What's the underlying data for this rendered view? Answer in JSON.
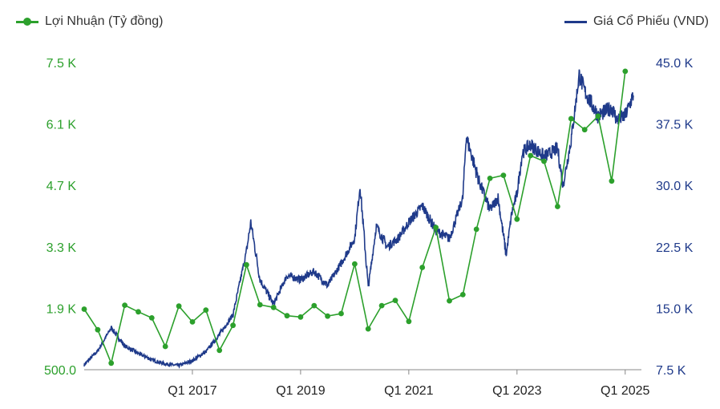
{
  "chart_data": {
    "type": "line",
    "legend_placement": "top",
    "colors": {
      "profit": "#2ca02c",
      "price": "#1f3a8a",
      "axis": "#444444"
    },
    "x_ticks": [
      "Q1 2017",
      "Q1 2019",
      "Q1 2021",
      "Q1 2023",
      "Q1 2025"
    ],
    "y_left": {
      "min": 500,
      "max": 7500,
      "ticks": [
        "500.0",
        "1.9 K",
        "3.3 K",
        "4.7 K",
        "6.1 K",
        "7.5 K"
      ]
    },
    "y_right": {
      "min": 7500,
      "max": 45000,
      "ticks": [
        "7.5 K",
        "15.0 K",
        "22.5 K",
        "30.0 K",
        "37.5 K",
        "45.0 K"
      ]
    },
    "series": [
      {
        "name": "Lợi Nhuận (Tỷ đồng)",
        "axis": "left",
        "x_quarter": [
          "2015-Q1",
          "2015-Q2",
          "2015-Q3",
          "2015-Q4",
          "2016-Q1",
          "2016-Q2",
          "2016-Q3",
          "2016-Q4",
          "2017-Q1",
          "2017-Q2",
          "2017-Q3",
          "2017-Q4",
          "2018-Q1",
          "2018-Q2",
          "2018-Q3",
          "2018-Q4",
          "2019-Q1",
          "2019-Q2",
          "2019-Q3",
          "2019-Q4",
          "2020-Q1",
          "2020-Q2",
          "2020-Q3",
          "2020-Q4",
          "2021-Q1",
          "2021-Q2",
          "2021-Q3",
          "2021-Q4",
          "2022-Q1",
          "2022-Q2",
          "2022-Q3",
          "2022-Q4",
          "2023-Q1",
          "2023-Q2",
          "2023-Q3",
          "2023-Q4",
          "2024-Q1",
          "2024-Q2",
          "2024-Q3",
          "2024-Q4",
          "2025-Q1"
        ],
        "values": [
          1880,
          1410,
          650,
          1970,
          1820,
          1680,
          1030,
          1950,
          1590,
          1860,
          940,
          1510,
          2890,
          1980,
          1920,
          1730,
          1700,
          1960,
          1720,
          1780,
          2910,
          1430,
          1960,
          2080,
          1600,
          2830,
          3740,
          2070,
          2210,
          3700,
          4860,
          4930,
          3930,
          5380,
          5250,
          4220,
          6220,
          5970,
          6280,
          4800,
          7300
        ]
      },
      {
        "name": "Giá Cổ Phiếu (VND)",
        "axis": "right",
        "anchors_year_value": [
          [
            2015.0,
            8100
          ],
          [
            2015.25,
            9800
          ],
          [
            2015.5,
            12600
          ],
          [
            2015.75,
            10400
          ],
          [
            2016.0,
            9500
          ],
          [
            2016.25,
            8700
          ],
          [
            2016.5,
            8200
          ],
          [
            2016.75,
            8000
          ],
          [
            2017.0,
            8600
          ],
          [
            2017.25,
            9700
          ],
          [
            2017.5,
            11800
          ],
          [
            2017.75,
            14200
          ],
          [
            2018.0,
            22000
          ],
          [
            2018.08,
            25500
          ],
          [
            2018.25,
            18500
          ],
          [
            2018.5,
            15500
          ],
          [
            2018.75,
            19000
          ],
          [
            2019.0,
            18500
          ],
          [
            2019.25,
            19500
          ],
          [
            2019.5,
            17800
          ],
          [
            2019.75,
            20500
          ],
          [
            2020.0,
            23500
          ],
          [
            2020.1,
            30000
          ],
          [
            2020.25,
            17500
          ],
          [
            2020.4,
            25000
          ],
          [
            2020.6,
            22500
          ],
          [
            2020.8,
            23500
          ],
          [
            2021.0,
            25500
          ],
          [
            2021.25,
            27500
          ],
          [
            2021.5,
            24500
          ],
          [
            2021.75,
            23500
          ],
          [
            2022.0,
            28500
          ],
          [
            2022.06,
            36000
          ],
          [
            2022.3,
            30500
          ],
          [
            2022.5,
            27000
          ],
          [
            2022.65,
            28500
          ],
          [
            2022.8,
            21500
          ],
          [
            2022.9,
            26500
          ],
          [
            2023.0,
            29000
          ],
          [
            2023.1,
            34000
          ],
          [
            2023.25,
            35000
          ],
          [
            2023.5,
            33500
          ],
          [
            2023.75,
            34500
          ],
          [
            2023.85,
            30000
          ],
          [
            2024.0,
            35500
          ],
          [
            2024.15,
            43500
          ],
          [
            2024.25,
            41500
          ],
          [
            2024.5,
            38500
          ],
          [
            2024.75,
            39500
          ],
          [
            2024.85,
            38000
          ],
          [
            2025.0,
            38500
          ],
          [
            2025.15,
            41000
          ]
        ]
      }
    ]
  }
}
